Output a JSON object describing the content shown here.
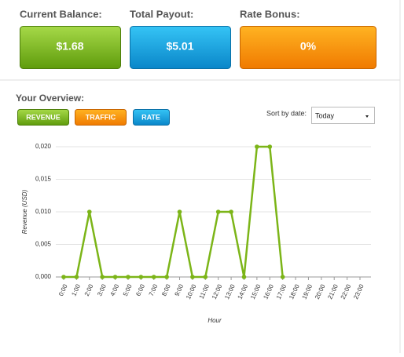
{
  "cards": [
    {
      "label": "Current Balance:",
      "value": "$1.68"
    },
    {
      "label": "Total Payout:",
      "value": "$5.01"
    },
    {
      "label": "Rate Bonus:",
      "value": "0%"
    }
  ],
  "overview_title": "Your Overview:",
  "tabs": [
    "REVENUE",
    "TRAFFIC",
    "RATE"
  ],
  "sort_label": "Sort by date:",
  "sort_value": "Today",
  "chart_data": {
    "type": "line",
    "ylabel": "Revenue (USD)",
    "xlabel": "Hour",
    "categories": [
      "0:00",
      "1:00",
      "2:00",
      "3:00",
      "4:00",
      "5:00",
      "6:00",
      "7:00",
      "8:00",
      "9:00",
      "10:00",
      "11:00",
      "12:00",
      "13:00",
      "14:00",
      "15:00",
      "16:00",
      "17:00",
      "18:00",
      "19:00",
      "20:00",
      "21:00",
      "22:00",
      "23:00"
    ],
    "values": [
      0,
      0,
      0.01,
      0,
      0,
      0,
      0,
      0,
      0,
      0.01,
      0,
      0,
      0.01,
      0.01,
      0,
      0.02,
      0.02,
      0,
      null,
      null,
      null,
      null,
      null,
      null
    ],
    "color": "#7cb518",
    "ylim": [
      0,
      0.02
    ],
    "yticks": [
      {
        "value": 0,
        "label": "0,000"
      },
      {
        "value": 0.005,
        "label": "0,005"
      },
      {
        "value": 0.01,
        "label": "0,010"
      },
      {
        "value": 0.015,
        "label": "0,015"
      },
      {
        "value": 0.02,
        "label": "0,020"
      }
    ],
    "grid": true
  }
}
